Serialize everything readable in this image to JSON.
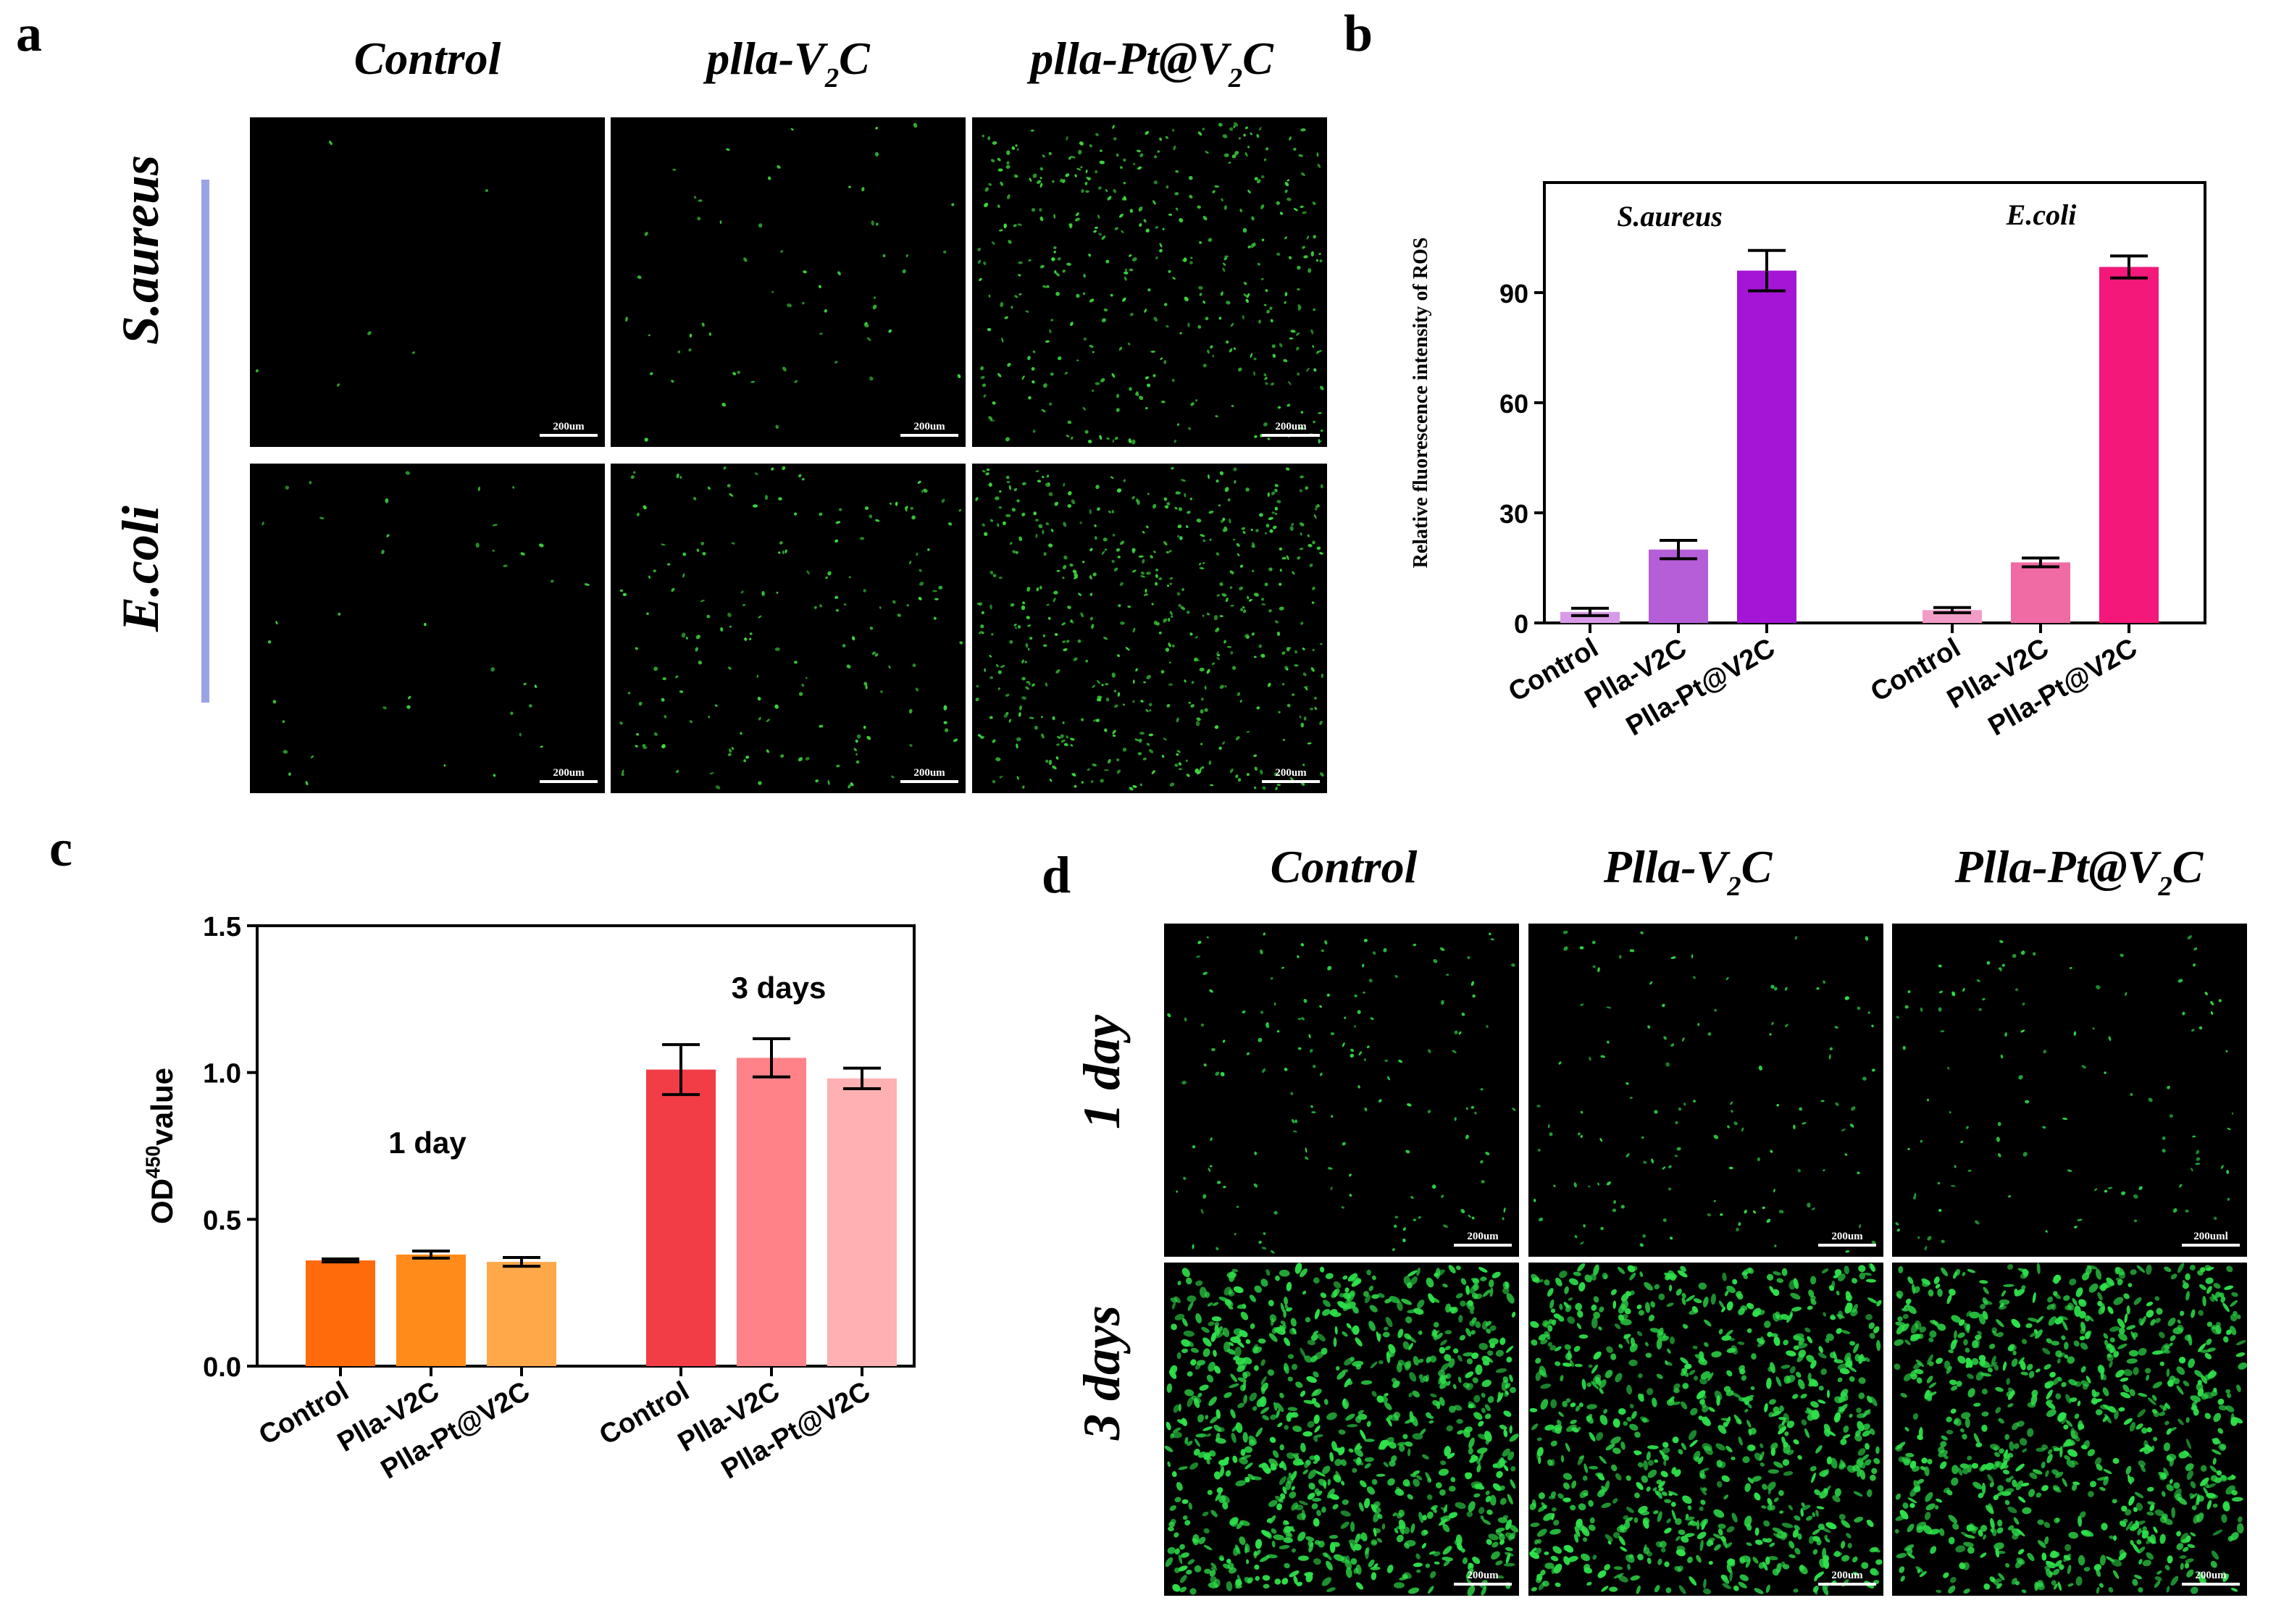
{
  "panel_labels": {
    "a": "a",
    "b": "b",
    "c": "c",
    "d": "d"
  },
  "panel_a": {
    "columns": [
      {
        "name": "Control",
        "sub": ""
      },
      {
        "name": "plla-V",
        "sub": "2",
        "suffix": "C"
      },
      {
        "name": "plla-Pt@V",
        "sub": "2",
        "suffix": "C"
      }
    ],
    "rows": [
      "S.aureus",
      "E.coli"
    ],
    "scale_bar": "200um",
    "row_bar_color": "#9aa3e6",
    "cell_color": "#3ddc3d",
    "cell_density": [
      [
        6,
        60,
        400
      ],
      [
        40,
        180,
        520
      ]
    ]
  },
  "panel_d": {
    "columns": [
      {
        "name": "Control",
        "sub": ""
      },
      {
        "name": "Plla-V",
        "sub": "2",
        "suffix": "C"
      },
      {
        "name": "Plla-Pt@V",
        "sub": "2",
        "suffix": "C"
      }
    ],
    "rows": [
      "1 day",
      "3 days"
    ],
    "scale_bars": [
      [
        "200um",
        "200um",
        "200uml"
      ],
      [
        "200um",
        "200um",
        "200um"
      ]
    ],
    "cell_color": "#2ee24a",
    "cell_density": [
      [
        150,
        130,
        110
      ],
      [
        900,
        850,
        850
      ]
    ]
  },
  "chart_data": [
    {
      "id": "b",
      "type": "bar",
      "ylabel": "Relative fluorescence intensity of ROS",
      "ylim": [
        0,
        120
      ],
      "yticks": [
        0,
        30,
        60,
        90
      ],
      "groups": [
        {
          "name": "S.aureus",
          "categories": [
            "Control",
            "Plla-V2C",
            "Plla-Pt@V2C"
          ],
          "values": [
            3,
            20,
            96
          ],
          "errors": [
            1,
            2.5,
            5.5
          ],
          "colors": [
            "#d89ae8",
            "#b55ed8",
            "#a515d6"
          ]
        },
        {
          "name": "E.coli",
          "categories": [
            "Control",
            "Plla-V2C",
            "Plla-Pt@V2C"
          ],
          "values": [
            3.5,
            16.5,
            97
          ],
          "errors": [
            0.7,
            1.2,
            3
          ],
          "colors": [
            "#f39cc6",
            "#f06aa4",
            "#f3187a"
          ]
        }
      ],
      "grid": false
    },
    {
      "id": "c",
      "type": "bar",
      "ylabel": "OD",
      "ylabel_sup": "450",
      "ylabel_suffix": "value",
      "ylim": [
        0,
        1.5
      ],
      "yticks": [
        0.0,
        0.5,
        1.0,
        1.5
      ],
      "ytick_labels": [
        "0.0",
        "0.5",
        "1.0",
        "1.5"
      ],
      "groups": [
        {
          "name": "1 day",
          "categories": [
            "Control",
            "Plla-V2C",
            "Plla-Pt@V2C"
          ],
          "values": [
            0.36,
            0.38,
            0.355
          ],
          "errors": [
            0.005,
            0.012,
            0.015
          ],
          "colors": [
            "#ff6a0a",
            "#ff8c1a",
            "#ffa84a"
          ]
        },
        {
          "name": "3 days",
          "categories": [
            "Control",
            "Plla-V2C",
            "Plla-Pt@V2C"
          ],
          "values": [
            1.01,
            1.05,
            0.98
          ],
          "errors": [
            0.085,
            0.065,
            0.035
          ],
          "colors": [
            "#f23c46",
            "#ff8288",
            "#ffb0b2"
          ]
        }
      ],
      "grid": false
    }
  ]
}
